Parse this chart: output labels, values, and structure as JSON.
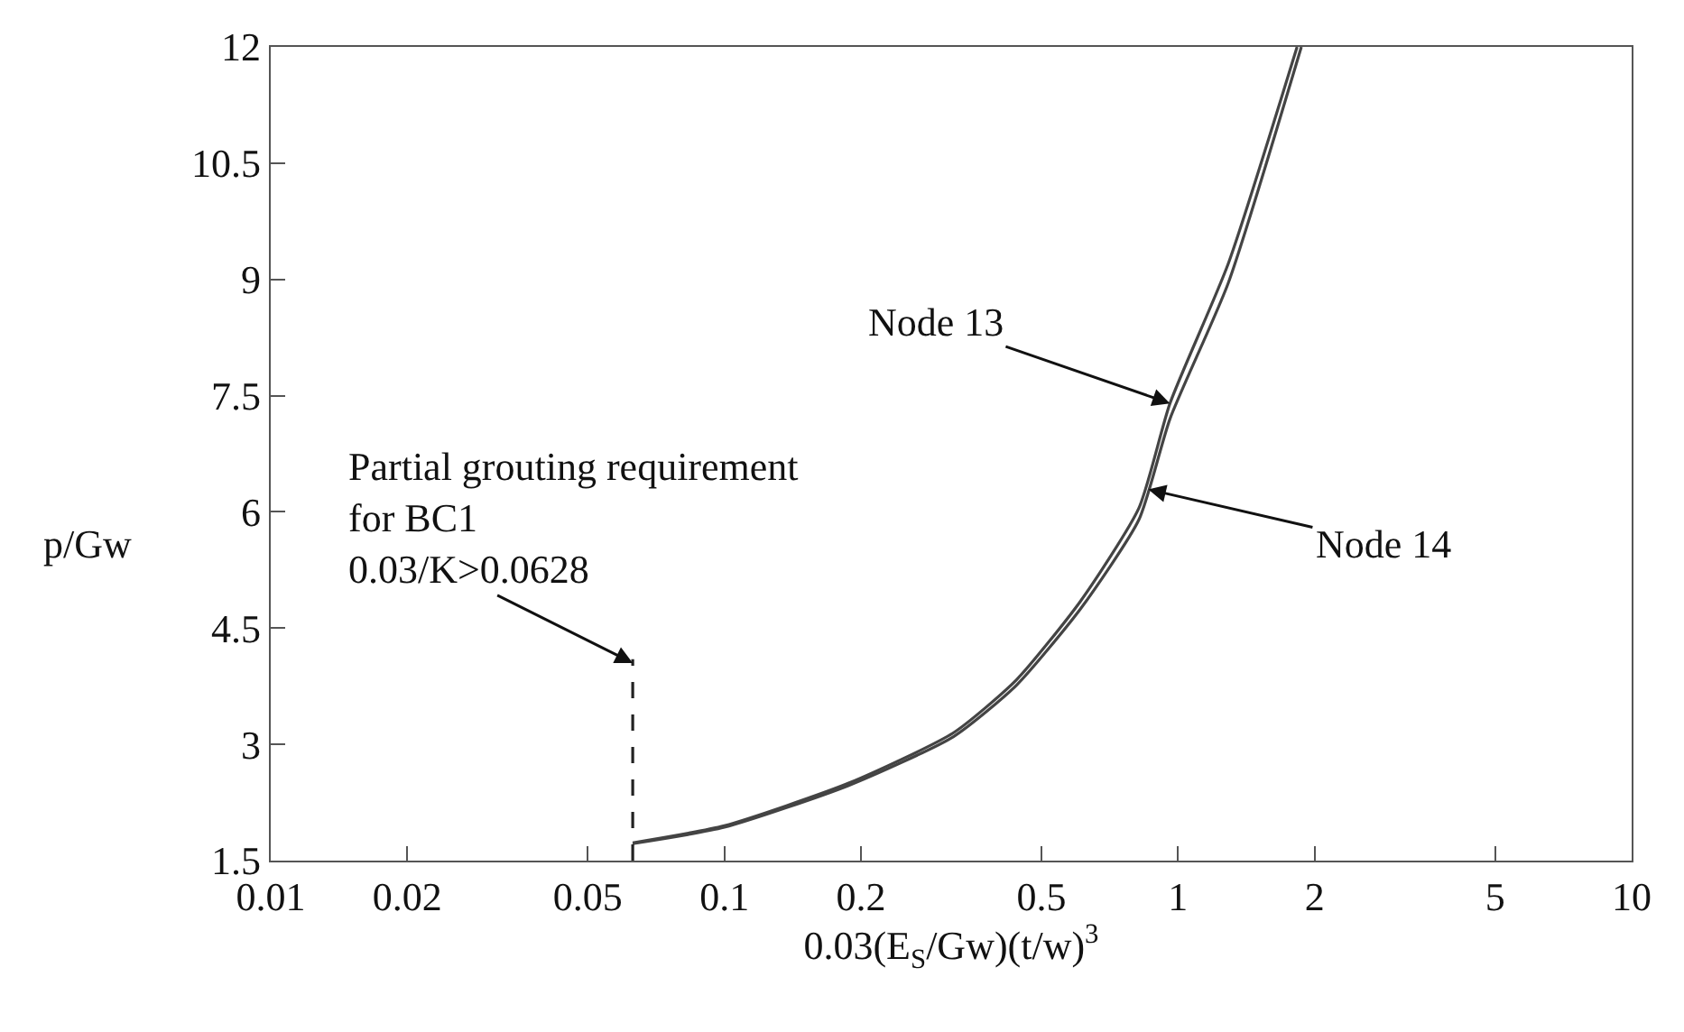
{
  "chart_data": {
    "type": "line",
    "xlabel": "0.03(E$_{S}$/Gw)(t/w)$^{3}$",
    "ylabel": "p/Gw",
    "log": "x",
    "xlim": [
      0.01,
      10
    ],
    "xticks": [
      0.01,
      0.02,
      0.05,
      0.1,
      0.2,
      0.5,
      1,
      2,
      5,
      10
    ],
    "ylim": [
      1.5,
      12
    ],
    "yticks": [
      1.5,
      3,
      4.5,
      6,
      7.5,
      9,
      10.5,
      12
    ],
    "marker": "none",
    "series": [
      {
        "color": "#444444",
        "line_style": "solid",
        "x": [
          0.0628,
          0.1,
          0.188,
          0.32,
          0.44,
          0.61,
          0.82,
          0.96,
          1.29,
          1.83
        ],
        "values": [
          1.73,
          1.95,
          2.5,
          3.15,
          3.83,
          4.85,
          6.05,
          7.4,
          9.2,
          12
        ]
      },
      {
        "color": "#444444",
        "line_style": "solid",
        "x": [
          0.0628,
          0.1,
          0.188,
          0.32,
          0.44,
          0.61,
          0.82,
          0.96,
          1.29,
          1.87
        ],
        "values": [
          1.72,
          1.93,
          2.47,
          3.1,
          3.76,
          4.75,
          5.9,
          7.2,
          8.95,
          12
        ]
      },
      {
        "color": "#222222",
        "line_style": "dashed",
        "x": [
          0.0628,
          0.0628
        ],
        "values": [
          1.5,
          4.1
        ]
      }
    ],
    "annotations": [
      {
        "text": "Node 13",
        "x": 0.96,
        "y": 7.4
      },
      {
        "text": "Node 14",
        "x": 0.86,
        "y": 6.29
      },
      {
        "text": "Partial grouting requirement\nfor BC1\n0.03/K>0.0628",
        "x": 0.0628,
        "y": 4.05
      }
    ]
  }
}
